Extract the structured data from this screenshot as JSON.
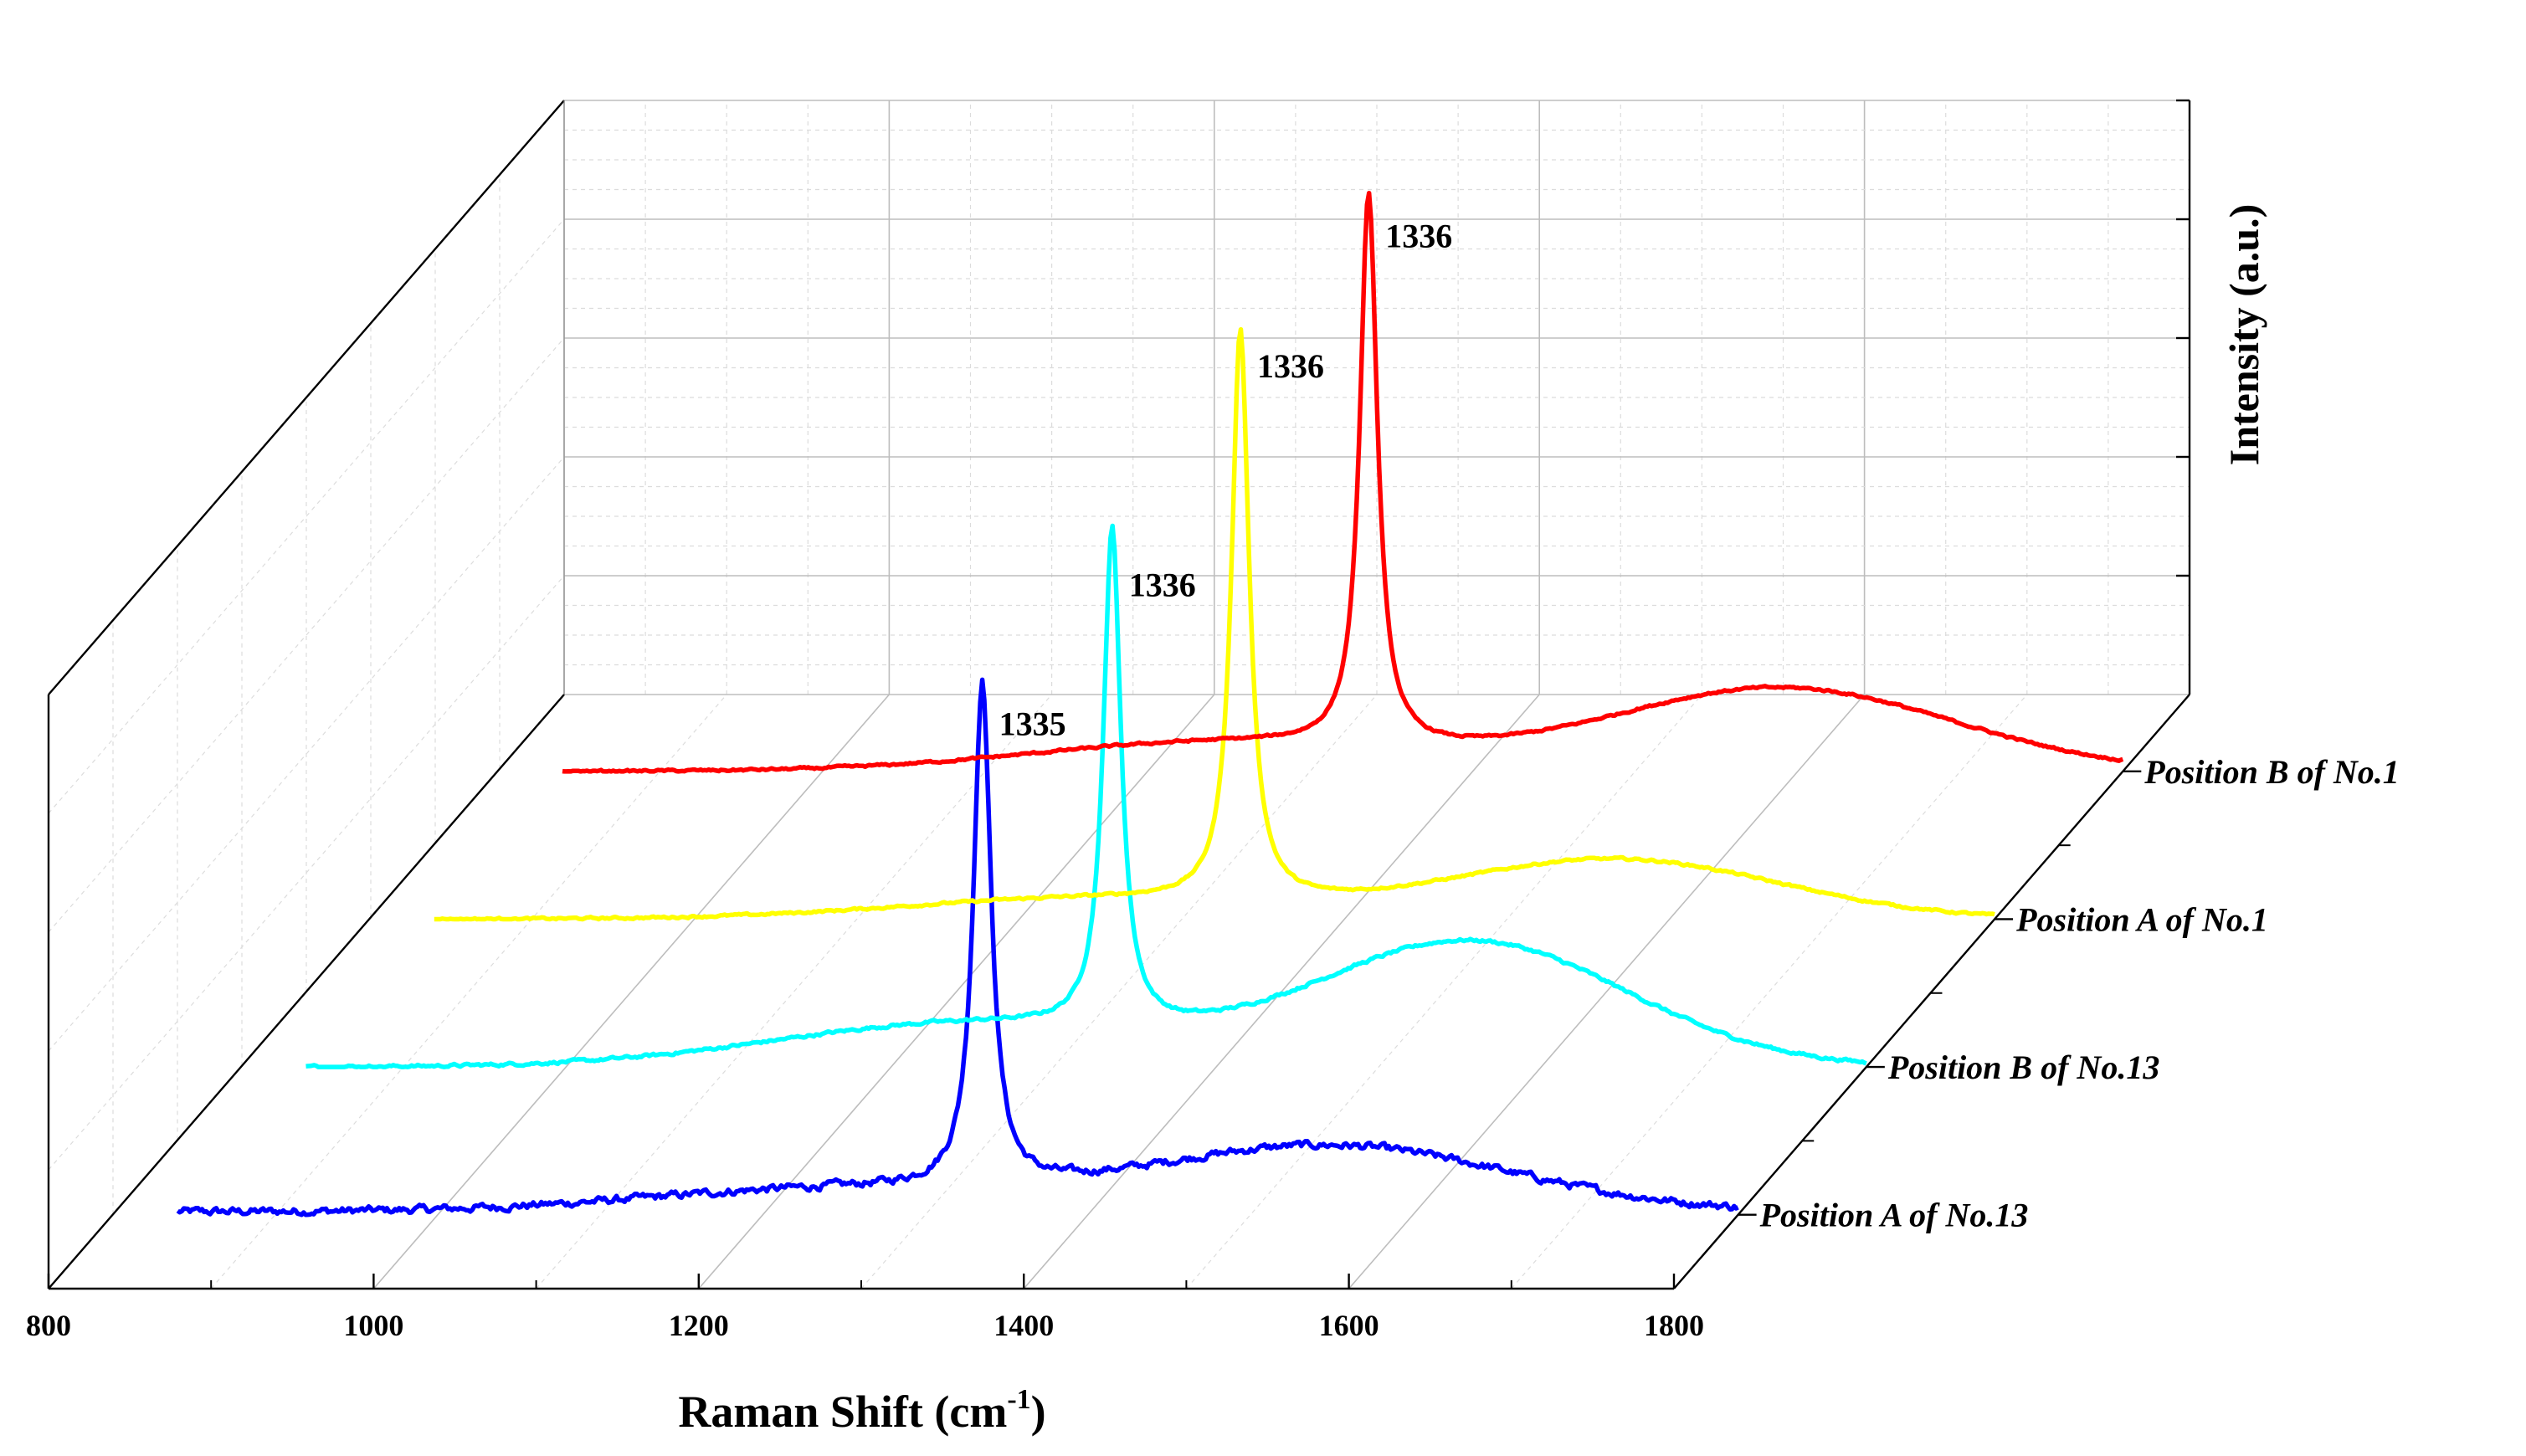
{
  "chart_data": {
    "type": "line",
    "subtype": "3d-waterfall",
    "title": "",
    "xlabel": "Raman Shift (cm",
    "xlabel_sup": "-1",
    "xlabel_end": ")",
    "ylabel": "Intensity (a.u.)",
    "xlim": [
      800,
      1800
    ],
    "xticks": [
      "800",
      "1000",
      "1200",
      "1400",
      "1600",
      "1800"
    ],
    "series": [
      {
        "name": "Position A of No.13",
        "color": "#0000ff",
        "peak_label": "1335",
        "peak_x": 1335,
        "peak_height": 0.85,
        "d_height": 0.11,
        "d_center": 1550,
        "d_width": 110,
        "baseline": 0.005,
        "noise": 0.01,
        "x_start": 840
      },
      {
        "name": "Position B of No.13",
        "color": "#00ffff",
        "peak_label": "1336",
        "peak_x": 1336,
        "peak_height": 0.84,
        "d_height": 0.21,
        "d_center": 1557,
        "d_width": 95,
        "baseline": 0.0,
        "noise": 0.004,
        "x_start": 840
      },
      {
        "name": "Position A of No.1",
        "color": "#ffff00",
        "peak_label": "1336",
        "peak_x": 1336,
        "peak_height": 0.96,
        "d_height": 0.1,
        "d_center": 1567,
        "d_width": 100,
        "baseline": 0.0,
        "noise": 0.003,
        "x_start": 840
      },
      {
        "name": "Position B of No.1",
        "color": "#ff0000",
        "peak_label": "1336",
        "peak_x": 1336,
        "peak_height": 0.93,
        "d_height": 0.14,
        "d_center": 1590,
        "d_width": 105,
        "baseline": 0.0,
        "noise": 0.003,
        "x_start": 840
      }
    ],
    "grid": true
  }
}
